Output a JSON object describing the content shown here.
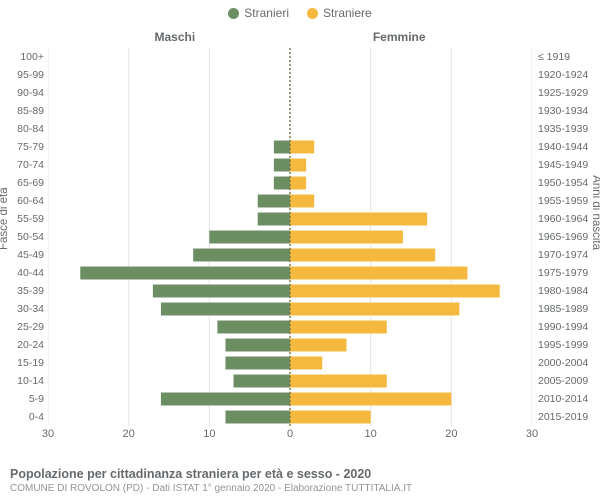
{
  "legend": {
    "male": {
      "label": "Stranieri",
      "color": "#6b8f63"
    },
    "female": {
      "label": "Straniere",
      "color": "#f6b940"
    }
  },
  "columns": {
    "male": "Maschi",
    "female": "Femmine"
  },
  "axis": {
    "left_label": "Fasce di età",
    "right_label": "Anni di nascita",
    "x_ticks": [
      30,
      20,
      10,
      0,
      10,
      20,
      30
    ],
    "x_max": 30
  },
  "styling": {
    "grid_color": "#e5e5e5",
    "center_line_color": "#7a7440",
    "background": "#ffffff",
    "tick_font_size": 10.5,
    "bar_gap_ratio": 0.28
  },
  "categories": [
    {
      "age": "100+",
      "birth": "≤ 1919",
      "m": 0,
      "f": 0
    },
    {
      "age": "95-99",
      "birth": "1920-1924",
      "m": 0,
      "f": 0
    },
    {
      "age": "90-94",
      "birth": "1925-1929",
      "m": 0,
      "f": 0
    },
    {
      "age": "85-89",
      "birth": "1930-1934",
      "m": 0,
      "f": 0
    },
    {
      "age": "80-84",
      "birth": "1935-1939",
      "m": 0,
      "f": 0
    },
    {
      "age": "75-79",
      "birth": "1940-1944",
      "m": 2,
      "f": 3
    },
    {
      "age": "70-74",
      "birth": "1945-1949",
      "m": 2,
      "f": 2
    },
    {
      "age": "65-69",
      "birth": "1950-1954",
      "m": 2,
      "f": 2
    },
    {
      "age": "60-64",
      "birth": "1955-1959",
      "m": 4,
      "f": 3
    },
    {
      "age": "55-59",
      "birth": "1960-1964",
      "m": 4,
      "f": 17
    },
    {
      "age": "50-54",
      "birth": "1965-1969",
      "m": 10,
      "f": 14
    },
    {
      "age": "45-49",
      "birth": "1970-1974",
      "m": 12,
      "f": 18
    },
    {
      "age": "40-44",
      "birth": "1975-1979",
      "m": 26,
      "f": 22
    },
    {
      "age": "35-39",
      "birth": "1980-1984",
      "m": 17,
      "f": 26
    },
    {
      "age": "30-34",
      "birth": "1985-1989",
      "m": 16,
      "f": 21
    },
    {
      "age": "25-29",
      "birth": "1990-1994",
      "m": 9,
      "f": 12
    },
    {
      "age": "20-24",
      "birth": "1995-1999",
      "m": 8,
      "f": 7
    },
    {
      "age": "15-19",
      "birth": "2000-2004",
      "m": 8,
      "f": 4
    },
    {
      "age": "10-14",
      "birth": "2005-2009",
      "m": 7,
      "f": 12
    },
    {
      "age": "5-9",
      "birth": "2010-2014",
      "m": 16,
      "f": 20
    },
    {
      "age": "0-4",
      "birth": "2015-2019",
      "m": 8,
      "f": 10
    }
  ],
  "footer": {
    "title": "Popolazione per cittadinanza straniera per età e sesso - 2020",
    "subtitle": "COMUNE DI ROVOLON (PD) - Dati ISTAT 1° gennaio 2020 - Elaborazione TUTTITALIA.IT"
  }
}
